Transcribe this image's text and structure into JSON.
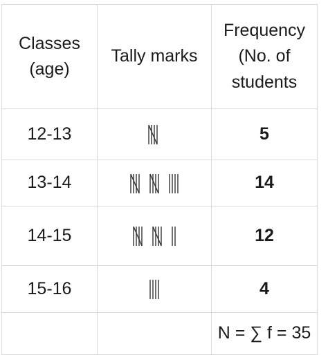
{
  "table": {
    "headers": {
      "classes": [
        "Classes",
        "(age)"
      ],
      "tally": "Tally marks",
      "frequency": [
        "Frequency",
        "(No. of",
        "students"
      ]
    },
    "rows": [
      {
        "class": "12-13",
        "tally_count": 5,
        "frequency": "5"
      },
      {
        "class": "13-14",
        "tally_count": 14,
        "frequency": "14"
      },
      {
        "class": "14-15",
        "tally_count": 12,
        "frequency": "12"
      },
      {
        "class": "15-16",
        "tally_count": 4,
        "frequency": "4"
      }
    ],
    "total": "N = ∑ f = 35"
  }
}
